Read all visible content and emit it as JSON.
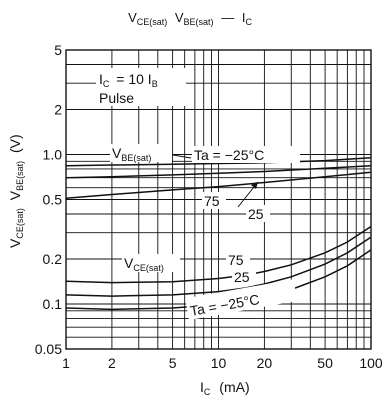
{
  "chart_data": {
    "type": "line",
    "title_parts": {
      "v1": "V",
      "s1": "CE(sat)",
      "v2": "V",
      "s2": "BE(sat)",
      "dash": "—",
      "i": "I",
      "s3": "C"
    },
    "xlabel_parts": {
      "main": "I",
      "sub": "C",
      "unit": "(mA)"
    },
    "ylabel_parts": {
      "v1": "V",
      "s1": "CE(sat)",
      "v2": "V",
      "s2": "BE(sat)",
      "unit": "(V)"
    },
    "x_scale": "log",
    "y_scale": "log",
    "xlim": [
      1,
      100
    ],
    "ylim": [
      0.05,
      5
    ],
    "x_ticks": [
      1,
      2,
      5,
      10,
      20,
      50,
      100
    ],
    "x_tick_labels": [
      "1",
      "2",
      "5",
      "10",
      "20",
      "50",
      "100"
    ],
    "y_ticks": [
      0.05,
      0.1,
      0.2,
      0.5,
      1.0,
      2,
      5
    ],
    "y_tick_labels": [
      "0.05",
      "0.1",
      "0.2",
      "0.5",
      "1.0",
      "2",
      "5"
    ],
    "grid": true,
    "condition_parts": {
      "ic": "I",
      "ic_sub": "C",
      "eq": "= 10 I",
      "ib_sub": "B",
      "pulse": "Pulse"
    },
    "group_labels": {
      "vbe": {
        "v": "V",
        "sub": "BE(sat)"
      },
      "vce": {
        "v": "V",
        "sub": "CE(sat)"
      }
    },
    "series": [
      {
        "group": "VBE(sat)",
        "label": "Ta = −25°C",
        "x": [
          1,
          2,
          5,
          10,
          20,
          50,
          100
        ],
        "y": [
          0.84,
          0.85,
          0.86,
          0.87,
          0.88,
          0.91,
          0.95
        ]
      },
      {
        "group": "VBE(sat)",
        "label": "75",
        "x": [
          1,
          2,
          5,
          10,
          20,
          50,
          100
        ],
        "y": [
          0.51,
          0.54,
          0.58,
          0.61,
          0.65,
          0.71,
          0.76
        ]
      },
      {
        "group": "VBE(sat)",
        "label": "25",
        "x": [
          1,
          2,
          5,
          10,
          20,
          50,
          100
        ],
        "y": [
          0.7,
          0.71,
          0.73,
          0.75,
          0.77,
          0.81,
          0.84
        ]
      },
      {
        "group": "VCE(sat)",
        "label": "75",
        "x": [
          1,
          2,
          5,
          10,
          15,
          20,
          30,
          50,
          70,
          100
        ],
        "y": [
          0.142,
          0.139,
          0.141,
          0.148,
          0.156,
          0.165,
          0.183,
          0.22,
          0.26,
          0.33
        ]
      },
      {
        "group": "VCE(sat)",
        "label": "25",
        "x": [
          1,
          2,
          5,
          10,
          15,
          20,
          30,
          50,
          70,
          100
        ],
        "y": [
          0.115,
          0.113,
          0.115,
          0.121,
          0.128,
          0.136,
          0.152,
          0.185,
          0.22,
          0.28
        ]
      },
      {
        "group": "VCE(sat)",
        "label": "Ta = −25°C",
        "x": [
          1,
          2,
          5,
          10,
          15,
          20,
          30,
          50,
          70,
          100
        ],
        "y": [
          0.094,
          0.092,
          0.094,
          0.099,
          0.105,
          0.111,
          0.125,
          0.152,
          0.18,
          0.23
        ]
      }
    ]
  }
}
